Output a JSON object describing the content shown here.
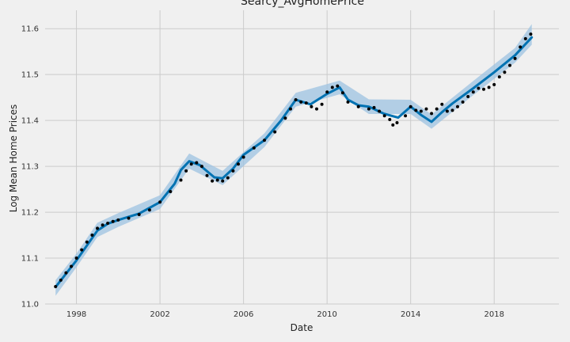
{
  "chart_data": {
    "type": "line",
    "title": "Searcy_AvgHomePrice",
    "xlabel": "Date",
    "ylabel": "Log Mean Home Prices",
    "x_ticks": [
      "1998",
      "2002",
      "2006",
      "2010",
      "2014",
      "2018"
    ],
    "y_ticks": [
      "11.0",
      "11.1",
      "11.2",
      "11.3",
      "11.4",
      "11.5",
      "11.6"
    ],
    "xlim": [
      1996.5,
      2021.1
    ],
    "ylim": [
      11.0,
      11.64
    ],
    "grid": true,
    "colors": {
      "trend": "#0072b2",
      "band": "#9dc3e2",
      "points": "#000000",
      "background": "#f0f0f0",
      "grid": "#cbcbcb"
    },
    "series": [
      {
        "type": "trend",
        "x": [
          1997.0,
          1998.0,
          1999.0,
          1999.5,
          2000.0,
          2001.0,
          2002.0,
          2002.7,
          2003.0,
          2003.4,
          2003.9,
          2004.6,
          2005.0,
          2005.5,
          2006.0,
          2007.0,
          2007.8,
          2008.5,
          2009.2,
          2010.0,
          2010.6,
          2011.0,
          2011.5,
          2012.0,
          2012.7,
          2013.4,
          2014.0,
          2014.5,
          2015.0,
          2015.5,
          2016.0,
          2017.0,
          2018.0,
          2019.0,
          2019.8
        ],
        "y": [
          11.037,
          11.095,
          11.16,
          11.175,
          11.183,
          11.197,
          11.222,
          11.262,
          11.292,
          11.311,
          11.303,
          11.276,
          11.274,
          11.295,
          11.325,
          11.357,
          11.4,
          11.445,
          11.435,
          11.458,
          11.472,
          11.445,
          11.433,
          11.43,
          11.415,
          11.406,
          11.43,
          11.412,
          11.397,
          11.418,
          11.437,
          11.47,
          11.505,
          11.542,
          11.581
        ]
      },
      {
        "type": "uncertainty-band",
        "x": [
          1997.0,
          1998.0,
          1999.0,
          2000.0,
          2002.0,
          2003.4,
          2005.0,
          2007.0,
          2008.5,
          2010.6,
          2012.0,
          2014.0,
          2015.0,
          2017.0,
          2019.0,
          2019.8
        ],
        "upper": [
          11.052,
          11.11,
          11.177,
          11.198,
          11.237,
          11.328,
          11.29,
          11.372,
          11.46,
          11.487,
          11.446,
          11.445,
          11.413,
          11.486,
          11.558,
          11.61
        ],
        "lower": [
          11.018,
          11.08,
          11.146,
          11.168,
          11.207,
          11.295,
          11.259,
          11.342,
          11.43,
          11.457,
          11.414,
          11.414,
          11.382,
          11.455,
          11.526,
          11.565
        ]
      },
      {
        "type": "observed",
        "x": [
          1997.0,
          1997.25,
          1997.5,
          1997.75,
          1998.0,
          1998.25,
          1998.5,
          1998.75,
          1999.0,
          1999.25,
          1999.5,
          1999.75,
          2000.0,
          2000.5,
          2001.0,
          2001.5,
          2002.0,
          2002.5,
          2003.0,
          2003.25,
          2003.5,
          2003.75,
          2004.0,
          2004.25,
          2004.5,
          2004.75,
          2005.0,
          2005.25,
          2005.5,
          2005.75,
          2006.0,
          2006.5,
          2007.0,
          2007.5,
          2008.0,
          2008.25,
          2008.5,
          2008.75,
          2009.0,
          2009.25,
          2009.5,
          2009.75,
          2010.0,
          2010.25,
          2010.5,
          2010.75,
          2011.0,
          2011.5,
          2012.0,
          2012.25,
          2012.5,
          2012.75,
          2013.0,
          2013.15,
          2013.35,
          2013.75,
          2014.0,
          2014.25,
          2014.5,
          2014.75,
          2015.0,
          2015.25,
          2015.5,
          2015.75,
          2016.0,
          2016.25,
          2016.5,
          2016.75,
          2017.0,
          2017.25,
          2017.5,
          2017.75,
          2018.0,
          2018.25,
          2018.5,
          2018.75,
          2019.0,
          2019.25,
          2019.5,
          2019.75
        ],
        "y": [
          11.038,
          11.052,
          11.068,
          11.082,
          11.1,
          11.118,
          11.135,
          11.15,
          11.165,
          11.172,
          11.176,
          11.18,
          11.183,
          11.187,
          11.195,
          11.205,
          11.222,
          11.245,
          11.27,
          11.29,
          11.305,
          11.308,
          11.3,
          11.28,
          11.268,
          11.27,
          11.268,
          11.275,
          11.29,
          11.305,
          11.32,
          11.34,
          11.357,
          11.375,
          11.405,
          11.425,
          11.445,
          11.44,
          11.438,
          11.43,
          11.425,
          11.435,
          11.462,
          11.472,
          11.475,
          11.46,
          11.44,
          11.43,
          11.425,
          11.428,
          11.42,
          11.41,
          11.402,
          11.39,
          11.395,
          11.41,
          11.43,
          11.422,
          11.42,
          11.425,
          11.415,
          11.425,
          11.435,
          11.42,
          11.422,
          11.43,
          11.44,
          11.452,
          11.462,
          11.47,
          11.468,
          11.472,
          11.478,
          11.495,
          11.505,
          11.52,
          11.535,
          11.56,
          11.578,
          11.588
        ]
      }
    ]
  }
}
